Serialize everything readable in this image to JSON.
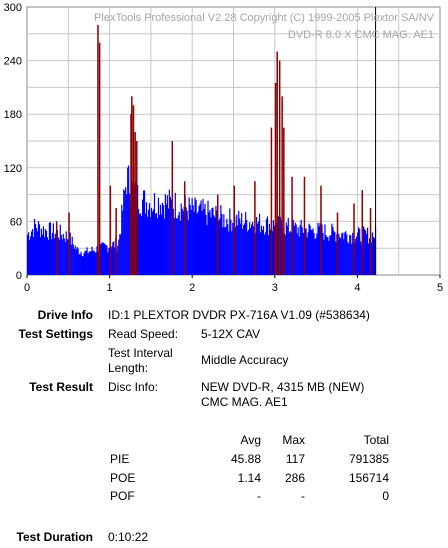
{
  "chart_data": {
    "type": "bar",
    "watermark": {
      "line1": "PlexTools Professional V2.28 Copyright (C) 1999-2005 Plextor SA/NV",
      "line2": "DVD-R   8.0 X   CMC MAG. AE1"
    },
    "xlim": [
      0,
      5
    ],
    "ylim": [
      0,
      300
    ],
    "x_ticks": [
      "0",
      "1",
      "2",
      "3",
      "4",
      "5"
    ],
    "y_ticks": [
      "0",
      "60",
      "120",
      "180",
      "240",
      "300"
    ],
    "grid": true,
    "marker_x": 4.22,
    "series": [
      {
        "color": "#0000ff",
        "baseline": [
          [
            0.0,
            45
          ],
          [
            0.1,
            55
          ],
          [
            0.2,
            50
          ],
          [
            0.3,
            48
          ],
          [
            0.4,
            46
          ],
          [
            0.5,
            42
          ],
          [
            0.6,
            28
          ],
          [
            0.7,
            25
          ],
          [
            0.8,
            28
          ],
          [
            0.9,
            30
          ],
          [
            1.0,
            33
          ],
          [
            1.1,
            35
          ],
          [
            1.2,
            108
          ],
          [
            1.3,
            90
          ],
          [
            1.4,
            82
          ],
          [
            1.5,
            80
          ],
          [
            1.6,
            82
          ],
          [
            1.7,
            80
          ],
          [
            1.8,
            78
          ],
          [
            1.9,
            75
          ],
          [
            2.0,
            72
          ],
          [
            2.2,
            68
          ],
          [
            2.4,
            62
          ],
          [
            2.6,
            60
          ],
          [
            2.8,
            58
          ],
          [
            3.0,
            55
          ],
          [
            3.2,
            52
          ],
          [
            3.4,
            50
          ],
          [
            3.6,
            48
          ],
          [
            3.8,
            46
          ],
          [
            4.0,
            44
          ],
          [
            4.22,
            45
          ]
        ]
      },
      {
        "color": "#8b0000",
        "spikes": [
          [
            0.35,
            60
          ],
          [
            0.5,
            70
          ],
          [
            0.85,
            280
          ],
          [
            0.87,
            260
          ],
          [
            1.0,
            100
          ],
          [
            1.07,
            75
          ],
          [
            1.25,
            180
          ],
          [
            1.26,
            200
          ],
          [
            1.28,
            190
          ],
          [
            1.3,
            160
          ],
          [
            1.32,
            150
          ],
          [
            1.75,
            150
          ],
          [
            1.9,
            105
          ],
          [
            2.3,
            90
          ],
          [
            2.5,
            100
          ],
          [
            2.75,
            105
          ],
          [
            2.95,
            165
          ],
          [
            3.0,
            215
          ],
          [
            3.02,
            250
          ],
          [
            3.05,
            240
          ],
          [
            3.08,
            200
          ],
          [
            3.1,
            165
          ],
          [
            3.2,
            110
          ],
          [
            3.35,
            110
          ],
          [
            3.55,
            100
          ],
          [
            3.75,
            70
          ],
          [
            3.95,
            80
          ],
          [
            4.05,
            95
          ],
          [
            4.15,
            75
          ]
        ]
      }
    ]
  },
  "drive_info": {
    "label": "Drive Info",
    "value": "ID:1 PLEXTOR DVDR PX-716A V1.09 (#538634)"
  },
  "test_settings": {
    "label": "Test Settings",
    "read_speed_label": "Read Speed:",
    "read_speed_value": "5-12X CAV",
    "interval_label_1": "Test Interval",
    "interval_label_2": "Length:",
    "interval_value": "Middle Accuracy"
  },
  "test_result": {
    "label": "Test Result",
    "disc_info_label": "Disc Info:",
    "disc_info_line1": "NEW DVD-R, 4315 MB (NEW)",
    "disc_info_line2": "CMC MAG. AE1"
  },
  "stats": {
    "headers": [
      "Avg",
      "Max",
      "Total"
    ],
    "rows": [
      {
        "name": "PIE",
        "avg": "45.88",
        "max": "117",
        "total": "791385"
      },
      {
        "name": "POE",
        "avg": "1.14",
        "max": "286",
        "total": "156714"
      },
      {
        "name": "POF",
        "avg": "-",
        "max": "-",
        "total": "0"
      }
    ]
  },
  "test_duration": {
    "label": "Test Duration",
    "value": "0:10:22"
  }
}
